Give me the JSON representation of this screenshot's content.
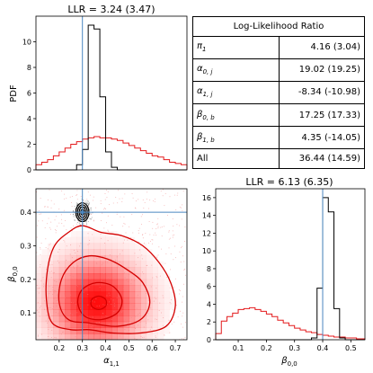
{
  "chart_data": [
    {
      "type": "histogram",
      "panel": "top-left",
      "title": "LLR = 3.24 (3.47)",
      "ylabel": "PDF",
      "xlim": [
        0.1,
        0.75
      ],
      "ylim": [
        0,
        12
      ],
      "yticks": [
        "0",
        "2",
        "4",
        "6",
        "8",
        "10"
      ],
      "ytick_values": [
        0,
        2,
        4,
        6,
        8,
        10
      ],
      "reference_line": 0.3,
      "series": [
        {
          "color": "#000000",
          "edges": [
            0.1,
            0.125,
            0.15,
            0.175,
            0.2,
            0.225,
            0.25,
            0.275,
            0.3,
            0.325,
            0.35,
            0.375,
            0.4,
            0.425,
            0.45,
            0.475,
            0.5,
            0.525,
            0.55,
            0.575,
            0.6,
            0.625,
            0.65,
            0.675,
            0.7,
            0.725,
            0.75
          ],
          "values": [
            0,
            0,
            0,
            0,
            0,
            0,
            0,
            0.4,
            1.6,
            11.3,
            11,
            5.7,
            1.4,
            0.2,
            0,
            0,
            0,
            0,
            0,
            0,
            0,
            0,
            0,
            0,
            0,
            0
          ]
        },
        {
          "color": "#e41a1c",
          "edges": [
            0.1,
            0.125,
            0.15,
            0.175,
            0.2,
            0.225,
            0.25,
            0.275,
            0.3,
            0.325,
            0.35,
            0.375,
            0.4,
            0.425,
            0.45,
            0.475,
            0.5,
            0.525,
            0.55,
            0.575,
            0.6,
            0.625,
            0.65,
            0.675,
            0.7,
            0.725,
            0.75
          ],
          "values": [
            0.4,
            0.6,
            0.8,
            1.1,
            1.4,
            1.7,
            2.0,
            2.2,
            2.4,
            2.5,
            2.6,
            2.5,
            2.5,
            2.4,
            2.3,
            2.1,
            1.9,
            1.7,
            1.5,
            1.3,
            1.1,
            1.0,
            0.8,
            0.6,
            0.5,
            0.4
          ]
        }
      ]
    },
    {
      "type": "heatmap",
      "panel": "bottom-left",
      "xlabel": "α1,1",
      "ylabel": "β0,0",
      "xlim": [
        0.1,
        0.75
      ],
      "ylim": [
        0.02,
        0.47
      ],
      "xticks": [
        "0.2",
        "0.3",
        "0.4",
        "0.5",
        "0.6",
        "0.7"
      ],
      "xtick_values": [
        0.2,
        0.3,
        0.4,
        0.5,
        0.6,
        0.7
      ],
      "yticks": [
        "0.1",
        "0.2",
        "0.3",
        "0.4"
      ],
      "ytick_values": [
        0.1,
        0.2,
        0.3,
        0.4
      ],
      "reference_point": [
        0.3,
        0.4
      ],
      "red_density_center": [
        0.36,
        0.13
      ],
      "black_contours_center": [
        0.3,
        0.4
      ],
      "red_contours": [
        [
          [
            0.33,
            0.05
          ],
          [
            0.25,
            0.05
          ],
          [
            0.17,
            0.07
          ],
          [
            0.145,
            0.14
          ],
          [
            0.15,
            0.23
          ],
          [
            0.18,
            0.3
          ],
          [
            0.24,
            0.34
          ],
          [
            0.3,
            0.36
          ],
          [
            0.38,
            0.34
          ],
          [
            0.47,
            0.33
          ],
          [
            0.56,
            0.3
          ],
          [
            0.63,
            0.25
          ],
          [
            0.68,
            0.19
          ],
          [
            0.7,
            0.12
          ],
          [
            0.66,
            0.06
          ],
          [
            0.55,
            0.04
          ],
          [
            0.43,
            0.04
          ]
        ],
        [
          [
            0.33,
            0.07
          ],
          [
            0.24,
            0.08
          ],
          [
            0.2,
            0.13
          ],
          [
            0.21,
            0.2
          ],
          [
            0.26,
            0.25
          ],
          [
            0.33,
            0.27
          ],
          [
            0.41,
            0.26
          ],
          [
            0.49,
            0.23
          ],
          [
            0.56,
            0.19
          ],
          [
            0.59,
            0.13
          ],
          [
            0.55,
            0.08
          ],
          [
            0.45,
            0.06
          ]
        ],
        [
          [
            0.31,
            0.09
          ],
          [
            0.28,
            0.13
          ],
          [
            0.3,
            0.17
          ],
          [
            0.36,
            0.19
          ],
          [
            0.43,
            0.18
          ],
          [
            0.47,
            0.14
          ],
          [
            0.45,
            0.1
          ],
          [
            0.38,
            0.08
          ]
        ],
        [
          [
            0.34,
            0.12
          ],
          [
            0.34,
            0.14
          ],
          [
            0.37,
            0.15
          ],
          [
            0.4,
            0.14
          ],
          [
            0.4,
            0.12
          ],
          [
            0.37,
            0.11
          ]
        ]
      ],
      "black_contour_radii": [
        [
          0.028,
          0.028
        ],
        [
          0.021,
          0.022
        ],
        [
          0.014,
          0.016
        ],
        [
          0.007,
          0.009
        ]
      ]
    },
    {
      "type": "histogram",
      "panel": "bottom-right",
      "title": "LLR = 6.13 (6.35)",
      "xlabel": "β0,0",
      "xlim": [
        0.02,
        0.55
      ],
      "ylim": [
        0,
        17
      ],
      "xticks": [
        "0.1",
        "0.2",
        "0.3",
        "0.4",
        "0.5"
      ],
      "xtick_values": [
        0.1,
        0.2,
        0.3,
        0.4,
        0.5
      ],
      "yticks": [
        "0",
        "2",
        "4",
        "6",
        "8",
        "10",
        "12",
        "14",
        "16"
      ],
      "ytick_values": [
        0,
        2,
        4,
        6,
        8,
        10,
        12,
        14,
        16
      ],
      "reference_line": 0.4,
      "series": [
        {
          "color": "#000000",
          "edges": [
            0.02,
            0.04,
            0.06,
            0.08,
            0.1,
            0.12,
            0.14,
            0.16,
            0.18,
            0.2,
            0.22,
            0.24,
            0.26,
            0.28,
            0.3,
            0.32,
            0.34,
            0.36,
            0.38,
            0.4,
            0.42,
            0.44,
            0.46,
            0.48,
            0.5,
            0.52,
            0.55
          ],
          "values": [
            0,
            0,
            0,
            0,
            0,
            0,
            0,
            0,
            0,
            0,
            0,
            0,
            0,
            0,
            0,
            0,
            0,
            0.2,
            5.8,
            16,
            14.4,
            3.5,
            0.2,
            0,
            0,
            0
          ]
        },
        {
          "color": "#e41a1c",
          "edges": [
            0.02,
            0.04,
            0.06,
            0.08,
            0.1,
            0.12,
            0.14,
            0.16,
            0.18,
            0.2,
            0.22,
            0.24,
            0.26,
            0.28,
            0.3,
            0.32,
            0.34,
            0.36,
            0.38,
            0.4,
            0.42,
            0.44,
            0.46,
            0.48,
            0.5,
            0.52,
            0.55
          ],
          "values": [
            0.7,
            2.1,
            2.6,
            3.0,
            3.4,
            3.5,
            3.6,
            3.4,
            3.2,
            2.9,
            2.6,
            2.2,
            1.9,
            1.6,
            1.3,
            1.1,
            0.9,
            0.8,
            0.6,
            0.5,
            0.4,
            0.3,
            0.3,
            0.2,
            0.2,
            0.1
          ]
        }
      ]
    },
    {
      "type": "table",
      "panel": "top-right",
      "header": "Log-Likelihood Ratio",
      "rows": [
        {
          "sym": "π",
          "sub": "1",
          "value": "4.16 (3.04)"
        },
        {
          "sym": "α",
          "sub": "0, j",
          "value": "19.02 (19.25)"
        },
        {
          "sym": "α",
          "sub": "1, j",
          "value": "-8.34 (-10.98)"
        },
        {
          "sym": "β",
          "sub": "0, b",
          "value": "17.25 (17.33)"
        },
        {
          "sym": "β",
          "sub": "1, b",
          "value": "4.35 (-14.05)"
        },
        {
          "sym": "All",
          "sub": "",
          "value": "36.44 (14.59)"
        }
      ]
    }
  ]
}
